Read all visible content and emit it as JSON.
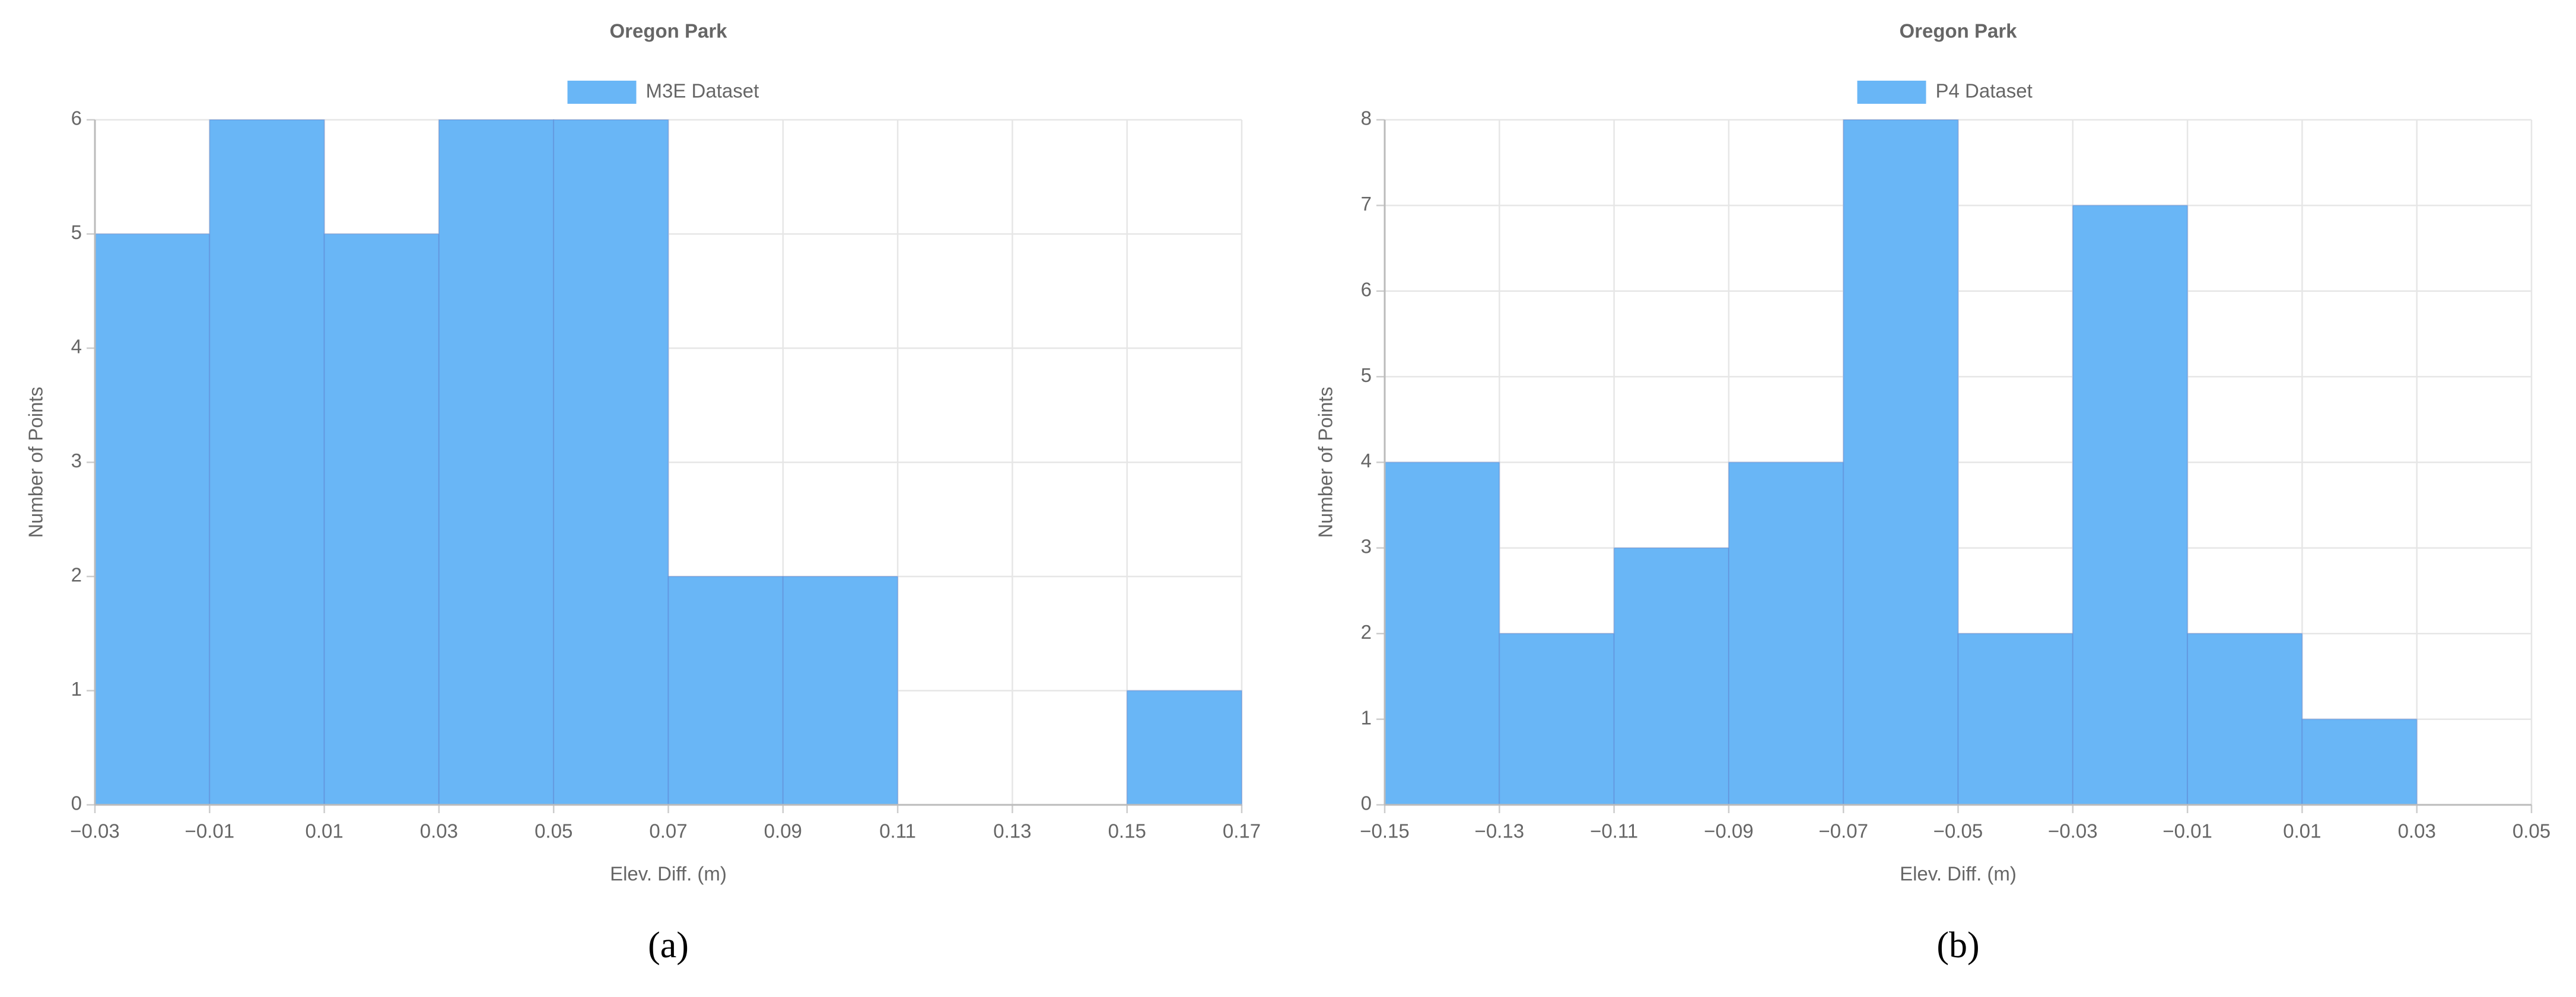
{
  "chart_data": [
    {
      "type": "histogram",
      "title": "Oregon Park",
      "caption": "(a)",
      "xlabel": "Elev. Diff. (m)",
      "ylabel": "Number of Points",
      "bins": [
        -0.03,
        -0.01,
        0.01,
        0.03,
        0.05,
        0.07,
        0.09,
        0.11,
        0.13,
        0.15,
        0.17
      ],
      "series": [
        {
          "name": "M3E Dataset",
          "color": "#69b6f6",
          "values": [
            5,
            6,
            5,
            6,
            6,
            2,
            2,
            0,
            0,
            1
          ]
        }
      ],
      "xlim": [
        -0.03,
        0.17
      ],
      "xticks": [
        {
          "value": -0.03,
          "label": "−0.03"
        },
        {
          "value": -0.01,
          "label": "−0.01"
        },
        0.01,
        0.03,
        0.05,
        0.07,
        0.09,
        0.11,
        0.13,
        0.15,
        0.17
      ],
      "ylim": [
        0,
        6
      ],
      "yticks": [
        0,
        1,
        2,
        3,
        4,
        5,
        6
      ],
      "grid": true
    },
    {
      "type": "histogram",
      "title": "Oregon Park",
      "caption": "(b)",
      "xlabel": "Elev. Diff. (m)",
      "ylabel": "Number of Points",
      "bins": [
        -0.15,
        -0.13,
        -0.11,
        -0.09,
        -0.07,
        -0.05,
        -0.03,
        -0.01,
        0.01,
        0.03,
        0.05
      ],
      "series": [
        {
          "name": "P4 Dataset",
          "color": "#69b6f6",
          "values": [
            4,
            2,
            3,
            4,
            8,
            2,
            7,
            2,
            1,
            0
          ]
        }
      ],
      "xlim": [
        -0.15,
        0.05
      ],
      "xticks": [
        {
          "value": -0.15,
          "label": "−0.15"
        },
        {
          "value": -0.13,
          "label": "−0.13"
        },
        {
          "value": -0.11,
          "label": "−0.11"
        },
        {
          "value": -0.09,
          "label": "−0.09"
        },
        {
          "value": -0.07,
          "label": "−0.07"
        },
        {
          "value": -0.05,
          "label": "−0.05"
        },
        {
          "value": -0.03,
          "label": "−0.03"
        },
        {
          "value": -0.01,
          "label": "−0.01"
        },
        0.01,
        0.03,
        0.05
      ],
      "ylim": [
        0,
        8
      ],
      "yticks": [
        0,
        1,
        2,
        3,
        4,
        5,
        6,
        7,
        8
      ],
      "grid": true
    }
  ]
}
